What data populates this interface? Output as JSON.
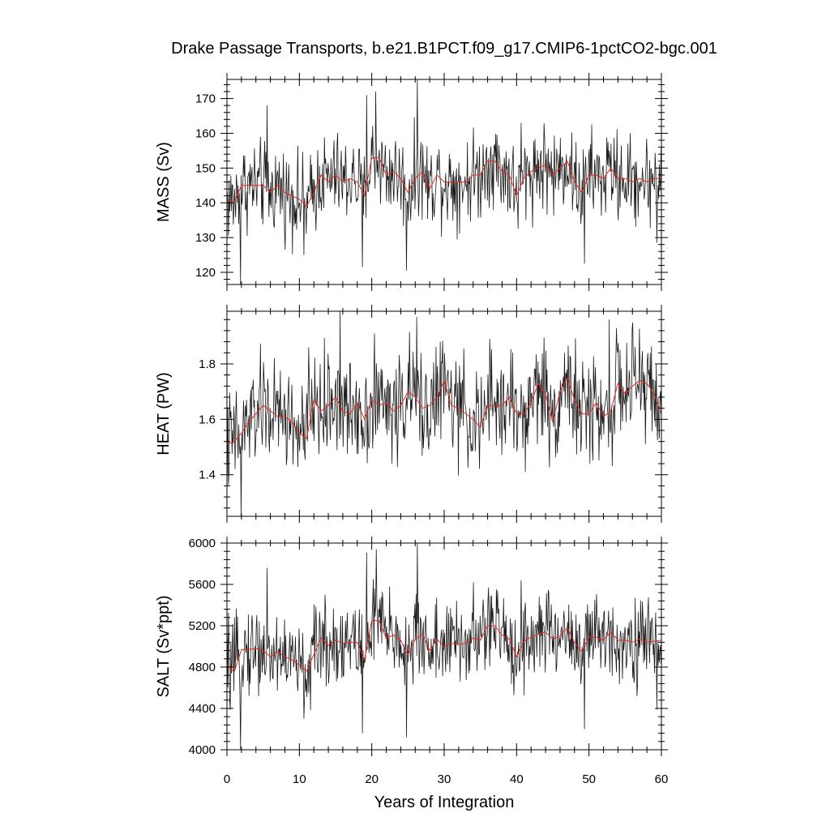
{
  "chart_data": {
    "type": "line",
    "title": "Drake Passage Transports, b.e21.B1PCT.f09_g17.CMIP6-1pctCO2-bgc.001",
    "xlabel": "Years of Integration",
    "xlim": [
      0,
      60
    ],
    "x_ticks": [
      "0",
      "10",
      "20",
      "30",
      "40",
      "50",
      "60"
    ],
    "colors": {
      "raw": "#1a1a1a",
      "annual_mean": "#e8281e"
    },
    "panels": [
      {
        "ylabel": "MASS (Sv)",
        "ylim": [
          116.5,
          175.5
        ],
        "y_ticks": [
          "120",
          "130",
          "140",
          "150",
          "160",
          "170"
        ],
        "y_tick_values": [
          120,
          130,
          140,
          150,
          160,
          170
        ],
        "mean": 146,
        "amplitude": 8,
        "spikes": [
          {
            "x": 1.85,
            "y": 116.5
          },
          {
            "x": 5.5,
            "y": 168
          },
          {
            "x": 10.6,
            "y": 125
          },
          {
            "x": 18.7,
            "y": 121.5
          },
          {
            "x": 19.3,
            "y": 171
          },
          {
            "x": 20.5,
            "y": 172
          },
          {
            "x": 24.8,
            "y": 120.5
          },
          {
            "x": 26.3,
            "y": 175.5
          },
          {
            "x": 40.6,
            "y": 163
          },
          {
            "x": 49.4,
            "y": 122.5
          },
          {
            "x": 59.4,
            "y": 128.5
          }
        ],
        "annual_mean": [
          141,
          140,
          145,
          145,
          145,
          145,
          143,
          145,
          143,
          142,
          141,
          139,
          143,
          148,
          146,
          148,
          146,
          147,
          146,
          142,
          153,
          153,
          148,
          149,
          147,
          143,
          147,
          149,
          144,
          148,
          146,
          146,
          146,
          146,
          148,
          148,
          152,
          152,
          149,
          148,
          142,
          147,
          149,
          150,
          151,
          148,
          150,
          152,
          146,
          143,
          148,
          148,
          147,
          150,
          147,
          147,
          146,
          147,
          146,
          147,
          147
        ]
      },
      {
        "ylabel": "HEAT (PW)",
        "ylim": [
          1.25,
          1.99
        ],
        "y_ticks": [
          "1.4",
          "1.6",
          "1.8"
        ],
        "y_tick_values": [
          1.4,
          1.6,
          1.8
        ],
        "mean": 1.62,
        "amplitude": 0.12,
        "spikes": [
          {
            "x": 1.95,
            "y": 1.25
          },
          {
            "x": 11.3,
            "y": 1.86
          },
          {
            "x": 15.6,
            "y": 1.99
          },
          {
            "x": 20.4,
            "y": 1.91
          },
          {
            "x": 26.2,
            "y": 1.97
          },
          {
            "x": 36.3,
            "y": 1.89
          },
          {
            "x": 41.2,
            "y": 1.41
          },
          {
            "x": 52.8,
            "y": 1.96
          }
        ],
        "annual_mean": [
          1.51,
          1.52,
          1.55,
          1.59,
          1.62,
          1.65,
          1.63,
          1.61,
          1.61,
          1.59,
          1.55,
          1.53,
          1.67,
          1.63,
          1.65,
          1.68,
          1.63,
          1.62,
          1.66,
          1.6,
          1.67,
          1.65,
          1.66,
          1.63,
          1.65,
          1.7,
          1.68,
          1.64,
          1.65,
          1.68,
          1.74,
          1.65,
          1.64,
          1.62,
          1.6,
          1.57,
          1.65,
          1.65,
          1.65,
          1.68,
          1.62,
          1.62,
          1.66,
          1.73,
          1.69,
          1.59,
          1.7,
          1.75,
          1.67,
          1.62,
          1.62,
          1.66,
          1.61,
          1.63,
          1.73,
          1.69,
          1.72,
          1.74,
          1.73,
          1.69,
          1.62
        ]
      },
      {
        "ylabel": "SALT (Sv*ppt)",
        "ylim": [
          4000,
          6000
        ],
        "y_ticks": [
          "4000",
          "4400",
          "4800",
          "5200",
          "5600",
          "6000"
        ],
        "y_tick_values": [
          4000,
          4400,
          4800,
          5200,
          5600,
          6000
        ],
        "mean": 5020,
        "amplitude": 270,
        "spikes": [
          {
            "x": 1.85,
            "y": 4000
          },
          {
            "x": 5.5,
            "y": 5760
          },
          {
            "x": 10.6,
            "y": 4300
          },
          {
            "x": 18.7,
            "y": 4160
          },
          {
            "x": 19.3,
            "y": 5910
          },
          {
            "x": 20.6,
            "y": 5940
          },
          {
            "x": 24.8,
            "y": 4120
          },
          {
            "x": 26.3,
            "y": 6000
          },
          {
            "x": 40.6,
            "y": 5640
          },
          {
            "x": 49.4,
            "y": 4200
          },
          {
            "x": 59.4,
            "y": 4390
          }
        ],
        "annual_mean": [
          4830,
          4750,
          4970,
          4970,
          4980,
          4960,
          4900,
          4950,
          4900,
          4870,
          4820,
          4760,
          4920,
          5080,
          5010,
          5060,
          5030,
          5040,
          5040,
          4870,
          5250,
          5250,
          5080,
          5110,
          5060,
          4920,
          5070,
          5120,
          4960,
          5070,
          5000,
          5030,
          5020,
          5030,
          5080,
          5060,
          5200,
          5200,
          5110,
          5070,
          4900,
          5050,
          5090,
          5120,
          5140,
          5070,
          5100,
          5180,
          5040,
          4950,
          5090,
          5090,
          5060,
          5140,
          5060,
          5060,
          5040,
          5070,
          5040,
          5050,
          5060
        ]
      }
    ]
  }
}
